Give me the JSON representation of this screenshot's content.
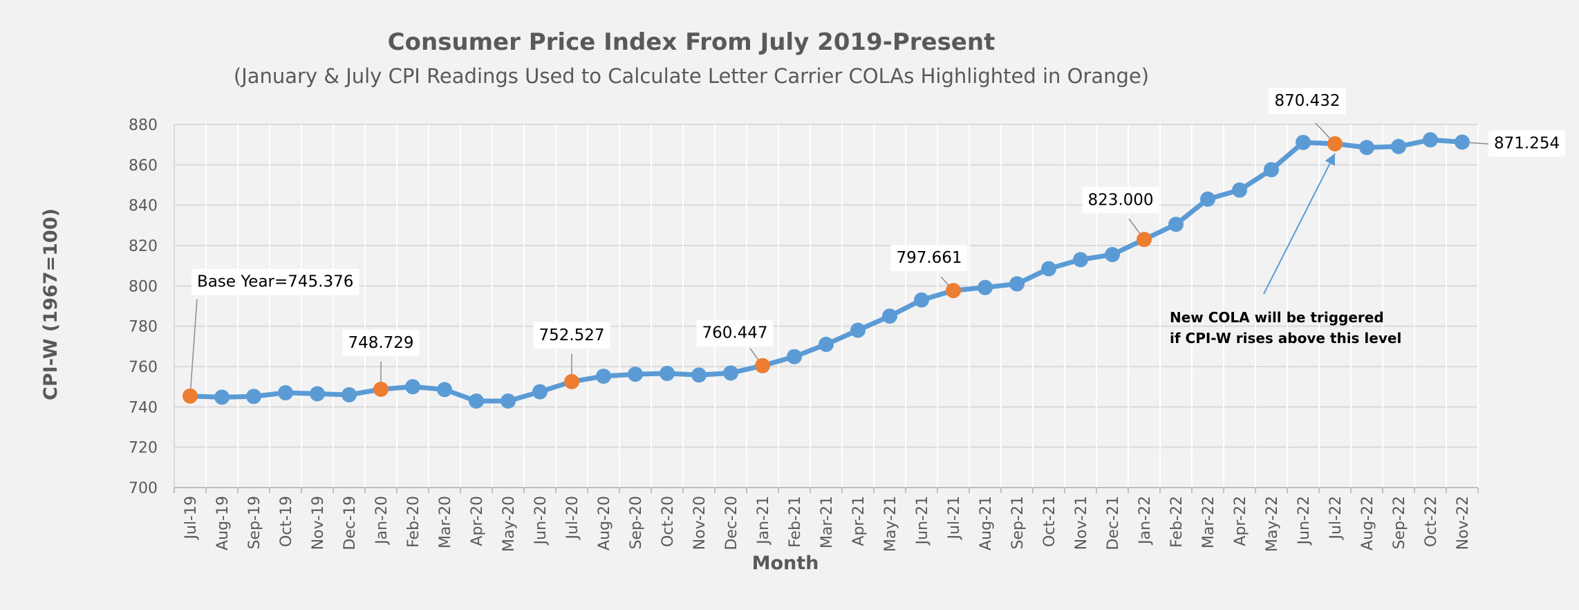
{
  "chart_data": {
    "type": "line",
    "title": "Consumer Price Index From July 2019-Present",
    "subtitle": "(January & July CPI Readings Used to Calculate Letter Carrier COLAs Highlighted in Orange)",
    "xlabel": "Month",
    "ylabel": "CPI-W (1967=100)",
    "ylim": [
      700,
      880
    ],
    "y_ticks": [
      700,
      720,
      740,
      760,
      780,
      800,
      820,
      840,
      860,
      880
    ],
    "grid": true,
    "legend": "none",
    "categories": [
      "Jul-19",
      "Aug-19",
      "Sep-19",
      "Oct-19",
      "Nov-19",
      "Dec-19",
      "Jan-20",
      "Feb-20",
      "Mar-20",
      "Apr-20",
      "May-20",
      "Jun-20",
      "Jul-20",
      "Aug-20",
      "Sep-20",
      "Oct-20",
      "Nov-20",
      "Dec-20",
      "Jan-21",
      "Feb-21",
      "Mar-21",
      "Apr-21",
      "May-21",
      "Jun-21",
      "Jul-21",
      "Aug-21",
      "Sep-21",
      "Oct-21",
      "Nov-21",
      "Dec-21",
      "Jan-22",
      "Feb-22",
      "Mar-22",
      "Apr-22",
      "May-22",
      "Jun-22",
      "Jul-22",
      "Aug-22",
      "Sep-22",
      "Oct-22",
      "Nov-22"
    ],
    "series": [
      {
        "values": [
          745.376,
          744.8,
          745.2,
          747.0,
          746.5,
          746.0,
          748.729,
          750.0,
          748.6,
          742.9,
          742.9,
          747.5,
          752.527,
          755.2,
          756.2,
          756.6,
          755.8,
          756.8,
          760.447,
          764.9,
          771.0,
          778.0,
          785.0,
          793.0,
          797.661,
          799.2,
          801.0,
          808.5,
          813.0,
          815.5,
          823.0,
          830.5,
          843.0,
          847.5,
          857.6,
          871.1,
          870.432,
          868.6,
          869.1,
          872.4,
          871.254
        ],
        "highlight_indices": [
          0,
          6,
          12,
          18,
          24,
          30,
          36
        ],
        "color": "#5b9bd5",
        "highlight_color": "#ed7d31"
      }
    ],
    "annotations": [
      {
        "text": "Base Year=745.376",
        "point_index": 0
      },
      {
        "text": "748.729",
        "point_index": 6
      },
      {
        "text": "752.527",
        "point_index": 12
      },
      {
        "text": "760.447",
        "point_index": 18
      },
      {
        "text": "797.661",
        "point_index": 24
      },
      {
        "text": "823.000",
        "point_index": 30
      },
      {
        "text": "870.432",
        "point_index": 36
      },
      {
        "text": "871.254",
        "point_index": 40
      }
    ],
    "cola_note": {
      "line1": "New COLA will be triggered",
      "line2": "if CPI-W rises above this level",
      "point_index": 36
    }
  }
}
